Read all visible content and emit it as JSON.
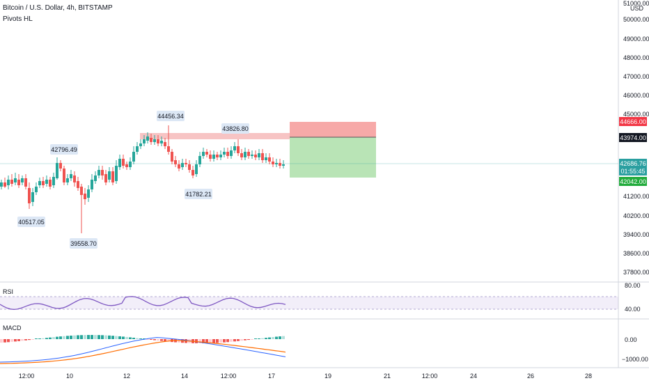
{
  "header": {
    "title": "Bitcoin / U.S. Dollar, 4h, BITSTAMP",
    "indicator": "Pivots HL"
  },
  "price_axis": {
    "currency": "USD",
    "top_label": "51000.00",
    "labels": [
      "50000.00",
      "49000.00",
      "48000.00",
      "47000.00",
      "46000.00",
      "45000.00",
      "41200.00",
      "40200.00",
      "39400.00",
      "38600.00",
      "37800.00"
    ]
  },
  "price_tags": {
    "stop": "44666.00",
    "entry": "43974.00",
    "last_price": "42686.76",
    "countdown": "01:55:45",
    "target": "42042.00"
  },
  "pivots": [
    "44456.34",
    "43826.80",
    "42796.49",
    "41782.21",
    "40517.05",
    "39558.70"
  ],
  "rsi": {
    "label": "RSI",
    "axis": [
      "80.00",
      "40.00"
    ]
  },
  "macd": {
    "label": "MACD",
    "axis": [
      "0.00",
      "−1000.00"
    ]
  },
  "time_axis": [
    "12:00",
    "10",
    "12",
    "14",
    "12:00",
    "17",
    "19",
    "21",
    "12:00",
    "24",
    "26",
    "28"
  ],
  "colors": {
    "up": "#26a69a",
    "down": "#ef5350",
    "rsi_line": "#7e57c2",
    "macd_line": "#2962ff",
    "signal_line": "#ff6d00",
    "stop_zone": "#f7a9a8",
    "target_zone": "#b9e4b6",
    "last_price": "#2a9fa0",
    "stop_tag": "#f23645",
    "target_tag": "#22ab3c"
  },
  "icons": [
    "currency-usd-icon"
  ]
}
